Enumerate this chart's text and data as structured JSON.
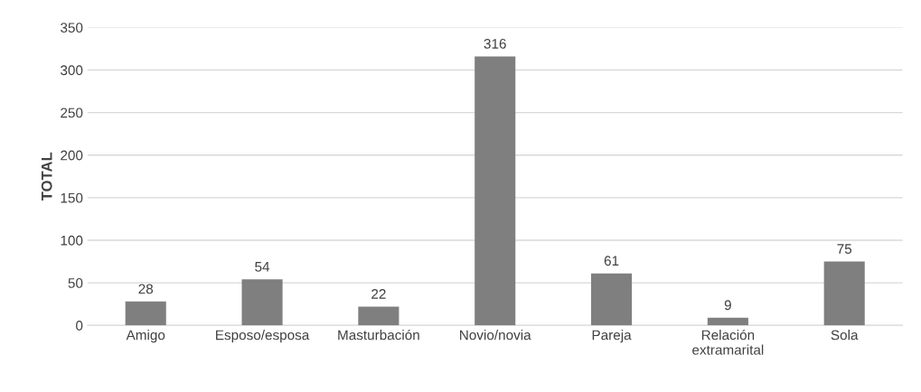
{
  "chart_data": {
    "type": "bar",
    "ylabel": "TOTAL",
    "categories": [
      "Amigo",
      "Esposo/esposa",
      "Masturbación",
      "Novio/novia",
      "Pareja",
      "Relación\nextramarital",
      "Sola"
    ],
    "values": [
      28,
      54,
      22,
      316,
      61,
      9,
      75
    ],
    "color": "#7f7f7f",
    "ylim": [
      0,
      350
    ],
    "yticks": [
      0,
      50,
      100,
      150,
      200,
      250,
      300,
      350
    ],
    "grid": "y",
    "data_labels": true,
    "legend": false
  }
}
